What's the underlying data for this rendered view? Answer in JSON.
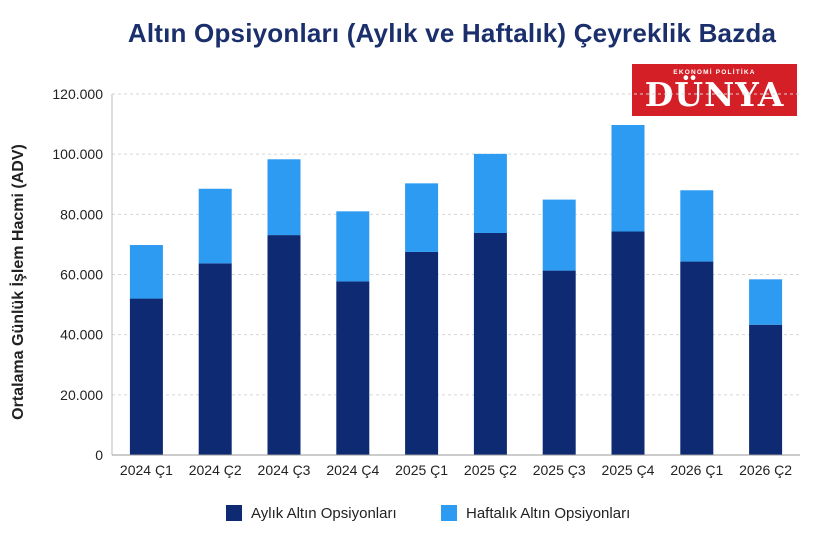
{
  "logo": {
    "subtitle": "EKONOMİ POLİTİKA",
    "name": "DÜNYA",
    "color": "#d41f27"
  },
  "colors": {
    "monthly": "#0d2a73",
    "weekly": "#2e9bf2",
    "title": "#1a2f6b"
  },
  "chart_data": {
    "type": "bar",
    "stacked": true,
    "title": "Altın Opsiyonları (Aylık ve Haftalık) Çeyreklik Bazda",
    "ylabel": "Ortalama Günlük İşlem Hacmi (ADV)",
    "xlabel": "",
    "ylim": [
      0,
      120000
    ],
    "yticks": [
      "0",
      "20.000",
      "40.000",
      "60.000",
      "80.000",
      "100.000",
      "120.000"
    ],
    "grid": true,
    "legend_position": "bottom",
    "categories": [
      "2024 Ç1",
      "2024 Ç2",
      "2024 Ç3",
      "2024 Ç4",
      "2025 Ç1",
      "2025 Ç2",
      "2025 Ç3",
      "2025 Ç4",
      "2026 Ç1",
      "2026 Ç2"
    ],
    "series": [
      {
        "name": "Aylık Altın Opsiyonları",
        "color": "#0d2a73",
        "values": [
          52000,
          63700,
          73100,
          57700,
          67500,
          73800,
          61300,
          74300,
          64300,
          43300
        ]
      },
      {
        "name": "Haftalık Altın Opsiyonları",
        "color": "#2e9bf2",
        "values": [
          17800,
          24800,
          25200,
          23300,
          22800,
          26300,
          23600,
          35400,
          23700,
          15100
        ]
      }
    ]
  }
}
